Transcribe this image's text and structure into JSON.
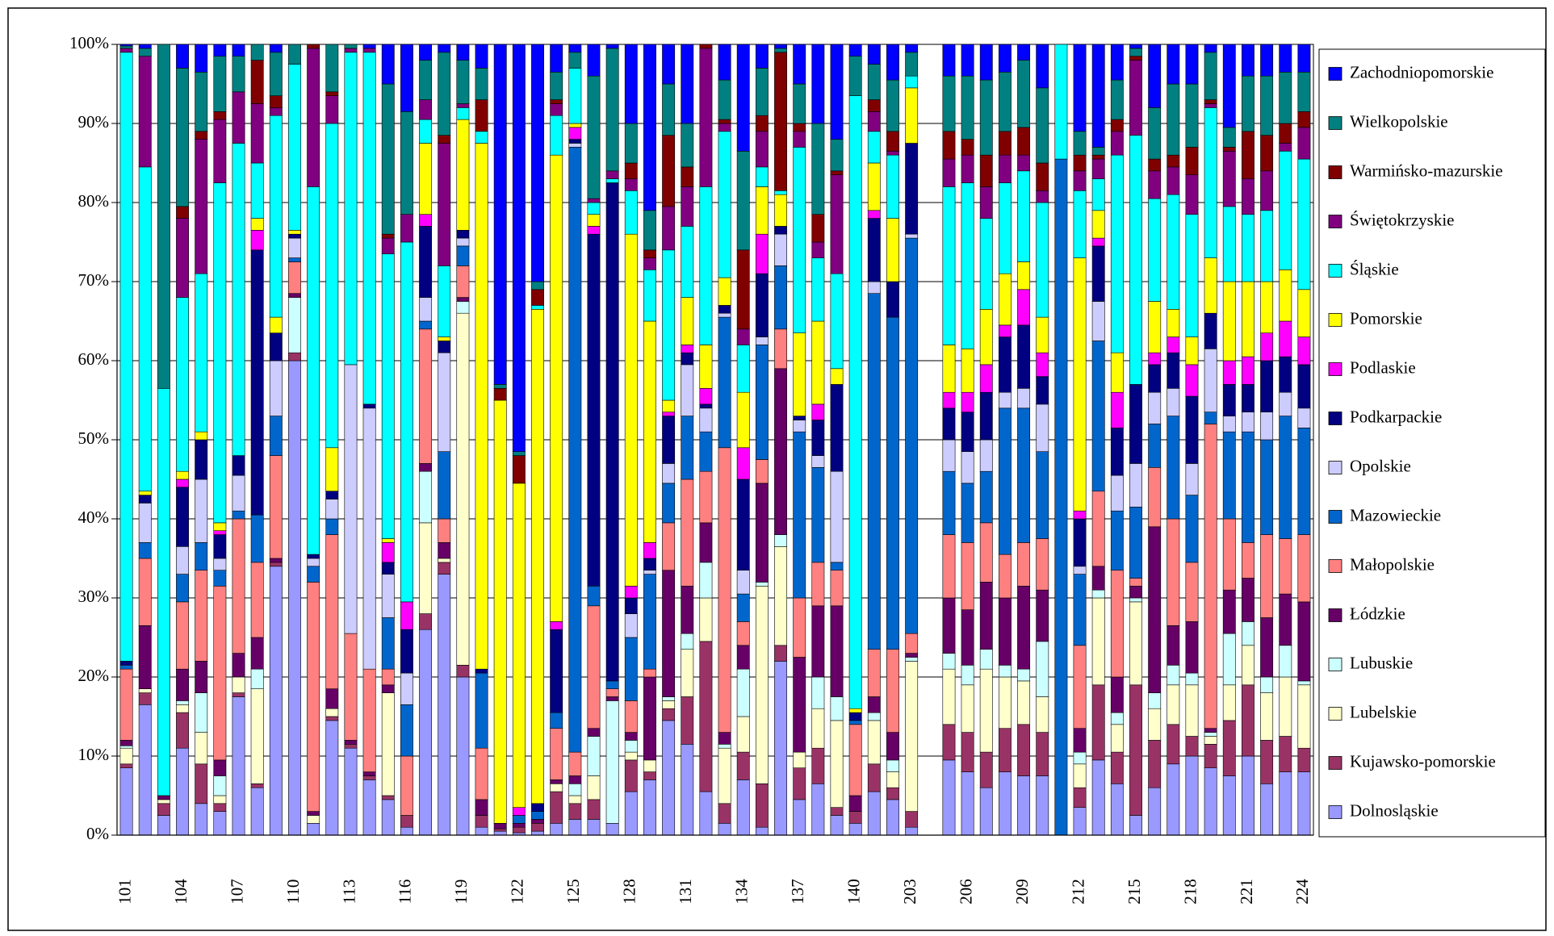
{
  "chart_data": {
    "type": "stacked_bar_100",
    "categories": [
      "101",
      null,
      null,
      "104",
      null,
      null,
      "107",
      null,
      null,
      "110",
      null,
      null,
      "113",
      null,
      null,
      "116",
      null,
      null,
      "119",
      null,
      null,
      "122",
      null,
      null,
      "125",
      null,
      null,
      "128",
      null,
      null,
      "131",
      null,
      null,
      "134",
      null,
      null,
      "137",
      null,
      null,
      "140",
      null,
      null,
      "203",
      null,
      null,
      "206",
      null,
      null,
      "209",
      null,
      null,
      "212",
      null,
      null,
      "215",
      null,
      null,
      "218",
      null,
      null,
      "221",
      null,
      null,
      "224"
    ],
    "ylim": [
      0,
      100
    ],
    "yticks": [
      {
        "value": 0,
        "label": "0%"
      },
      {
        "value": 10,
        "label": "10%"
      },
      {
        "value": 20,
        "label": "20%"
      },
      {
        "value": 30,
        "label": "30%"
      },
      {
        "value": 40,
        "label": "40%"
      },
      {
        "value": 50,
        "label": "50%"
      },
      {
        "value": 60,
        "label": "60%"
      },
      {
        "value": 70,
        "label": "70%"
      },
      {
        "value": 80,
        "label": "80%"
      },
      {
        "value": 90,
        "label": "90%"
      },
      {
        "value": 100,
        "label": "100%"
      }
    ],
    "grid": true,
    "legend": "right",
    "series": [
      {
        "name": "Dolnosląskie",
        "color": "#9999ff",
        "values": [
          8.5,
          16.5,
          2.5,
          11,
          4,
          3,
          17.5,
          6,
          34,
          60,
          1.5,
          14.5,
          11,
          7,
          4.5,
          1,
          26,
          33,
          20,
          1,
          0.5,
          0.3,
          0.5,
          1.5,
          2,
          2,
          1.5,
          5.5,
          7,
          14.5,
          11.5,
          5.5,
          1.5,
          7,
          1,
          22,
          4.5,
          6.5,
          2.5,
          1.5,
          5.5,
          4.5,
          1,
          null,
          9.5,
          8,
          6,
          8,
          7.5,
          7.5,
          0,
          3.5,
          9.5,
          6.5,
          2.5,
          6,
          9,
          10,
          8.5,
          7.5,
          10,
          6.5,
          8,
          8
        ]
      },
      {
        "name": "Kujawsko-pomorskie",
        "color": "#993366",
        "values": [
          0.5,
          1.5,
          1.5,
          4.5,
          5,
          1,
          0.5,
          0.5,
          0.5,
          1,
          0,
          0.5,
          0.5,
          0.5,
          0.5,
          1.5,
          2,
          1.5,
          1.5,
          1.5,
          0.3,
          0.7,
          1,
          4,
          2,
          2.5,
          0,
          4,
          1,
          1.5,
          6,
          19,
          2.5,
          3.5,
          5.5,
          2,
          4,
          4.5,
          1,
          1.5,
          3.5,
          1.5,
          2,
          null,
          4.5,
          5,
          4.5,
          5.5,
          6.5,
          5.5,
          0,
          2.5,
          9.5,
          4,
          16.5,
          6,
          5,
          2.5,
          3,
          7,
          9,
          5.5,
          4.5,
          3
        ]
      },
      {
        "name": "Lubelskie",
        "color": "#ffffcc",
        "values": [
          2,
          0.5,
          0.5,
          1,
          4,
          1,
          2,
          12,
          0,
          0,
          1,
          1,
          0,
          0,
          13,
          0,
          11.5,
          0.5,
          44.5,
          0,
          0,
          0,
          0,
          1,
          1,
          3,
          0,
          1,
          1.5,
          1,
          6,
          5.5,
          7,
          4.5,
          25,
          12.5,
          2,
          5,
          11,
          0,
          5.5,
          2,
          19,
          null,
          7,
          6,
          10.5,
          6.5,
          5.5,
          4.5,
          0,
          3,
          11,
          3.5,
          10.5,
          4,
          5,
          6.5,
          1,
          4.5,
          5,
          6,
          7.5,
          8
        ]
      },
      {
        "name": "Lubuskie",
        "color": "#ccffff",
        "values": [
          0.3,
          0,
          0,
          0.5,
          5,
          2.5,
          0,
          2.5,
          0,
          7,
          0,
          0,
          0,
          0,
          0,
          0,
          6.5,
          0,
          1.5,
          0,
          0,
          0,
          0,
          0,
          1.5,
          5,
          15.5,
          1.5,
          0,
          0.5,
          2,
          4.5,
          0.5,
          6,
          0.5,
          1.5,
          0,
          4,
          3,
          0,
          1,
          1.5,
          0.5,
          null,
          2,
          2.5,
          2.5,
          1.5,
          1.5,
          7,
          0,
          1.5,
          1,
          1.5,
          0.5,
          2,
          2.5,
          1.5,
          0.5,
          6.5,
          3,
          2,
          4,
          0.5
        ]
      },
      {
        "name": "Łódzkie",
        "color": "#660066",
        "values": [
          0.7,
          8,
          0.5,
          4,
          4,
          2,
          3,
          4,
          0.5,
          0.5,
          0.5,
          2.5,
          0.5,
          0.5,
          1,
          0,
          1,
          2,
          0.5,
          2,
          0.7,
          0.5,
          0.5,
          0.5,
          1,
          1,
          0.5,
          1,
          10.5,
          16,
          6,
          5,
          1.5,
          3,
          12.5,
          21,
          12,
          9,
          11.5,
          2,
          2,
          3.5,
          0.5,
          null,
          7,
          7,
          8.5,
          8.5,
          10.5,
          6.5,
          0,
          3,
          3,
          4.5,
          1.5,
          21,
          5,
          6.5,
          0.5,
          5.5,
          5.5,
          7.5,
          6.5,
          10
        ]
      },
      {
        "name": "Małopolskie",
        "color": "#ff8080",
        "values": [
          9,
          8.5,
          0,
          8.5,
          11.5,
          22,
          17,
          9.5,
          13,
          4,
          29,
          19.5,
          13.5,
          13,
          2,
          7.5,
          17,
          3,
          4,
          6.5,
          0,
          0,
          0,
          6.5,
          3,
          15.5,
          1,
          4,
          1,
          6,
          13.5,
          6.5,
          36,
          3,
          3,
          5,
          7.5,
          5.5,
          4.5,
          9,
          6,
          10.5,
          2.5,
          null,
          8,
          8.5,
          7.5,
          5.5,
          5.5,
          6.5,
          0,
          10.5,
          9.5,
          13.5,
          1,
          7.5,
          13.5,
          7.5,
          38.5,
          9,
          4.5,
          10.5,
          7,
          8.5
        ]
      },
      {
        "name": "Mazowieckie",
        "color": "#0066cc",
        "values": [
          0.5,
          2,
          0,
          3.5,
          3.5,
          2,
          1,
          6,
          5,
          0.5,
          2,
          2,
          0,
          0,
          6.5,
          6.5,
          1,
          8.5,
          2.5,
          9.5,
          0,
          1,
          1,
          2,
          76.5,
          2.5,
          1,
          8,
          12,
          5,
          8,
          5,
          16.5,
          3.5,
          14.5,
          8,
          21,
          12,
          1,
          0.5,
          45,
          42,
          50,
          null,
          8,
          7.5,
          6.5,
          18.5,
          17,
          11,
          85.5,
          9,
          19,
          7.5,
          9,
          5.5,
          13,
          8.5,
          1.5,
          11,
          14,
          12,
          15.5,
          13.5
        ]
      },
      {
        "name": "Opolskie",
        "color": "#ccccff",
        "values": [
          0,
          5,
          0,
          3.5,
          8,
          1.5,
          4.5,
          0,
          7,
          2.5,
          1,
          2.5,
          34,
          33,
          5.5,
          4,
          3,
          12.5,
          1,
          0,
          0,
          0,
          0,
          0,
          0.5,
          0,
          0,
          3,
          0.5,
          2.5,
          6.5,
          3,
          0.5,
          3,
          1,
          4,
          1.5,
          1.5,
          11.5,
          0,
          1.5,
          0,
          0.5,
          null,
          4,
          4,
          4,
          2,
          2.5,
          6,
          0,
          1,
          5,
          4.5,
          5.5,
          4,
          3.5,
          4,
          8,
          2,
          2.5,
          3.5,
          3,
          2.5
        ]
      },
      {
        "name": "Podkarpackie",
        "color": "#000080",
        "values": [
          0.5,
          1,
          0,
          7.5,
          5,
          3,
          2.5,
          33.5,
          3.5,
          0.5,
          0.5,
          1,
          0,
          0.5,
          1.5,
          5.5,
          9,
          1.5,
          1,
          0.5,
          0,
          0,
          1,
          10.5,
          0.5,
          44.5,
          63,
          2,
          1.5,
          6,
          1.5,
          0.5,
          1,
          11.5,
          8,
          1,
          0.5,
          4.5,
          11,
          1,
          8,
          4.5,
          11.5,
          null,
          4,
          5,
          6,
          7,
          8,
          3.5,
          0,
          6,
          7,
          6,
          10,
          3.5,
          4.5,
          8.5,
          4.5,
          4,
          3.5,
          6.5,
          4.5,
          5.5
        ]
      },
      {
        "name": "Podlaskie",
        "color": "#ff00ff",
        "values": [
          0,
          0,
          0,
          1,
          0,
          0.5,
          0,
          2.5,
          0,
          0,
          0,
          0,
          0,
          0,
          2.5,
          3.5,
          1.5,
          0,
          0,
          0,
          0,
          1,
          0,
          1,
          1.5,
          1,
          0,
          1.5,
          2,
          0.5,
          1,
          2,
          0,
          4,
          5,
          0,
          0,
          2,
          0,
          0,
          1,
          0,
          0,
          null,
          2,
          2.5,
          3.5,
          1.5,
          4.5,
          3,
          0,
          1,
          1,
          4.5,
          0,
          1.5,
          2,
          4,
          0,
          3,
          3.5,
          3.5,
          4.5,
          3.5
        ]
      },
      {
        "name": "Pomorskie",
        "color": "#ffff00",
        "values": [
          0,
          0.5,
          0,
          1,
          1,
          1,
          0,
          1.5,
          2,
          0.5,
          0,
          5.5,
          0,
          0,
          0.5,
          0,
          9,
          0.5,
          14,
          66.5,
          53.5,
          41,
          62.5,
          59,
          0.5,
          1.5,
          0,
          44.5,
          28,
          1.5,
          6,
          5.5,
          3.5,
          7,
          6,
          4,
          10.5,
          10.5,
          2,
          0.5,
          6,
          8,
          7,
          null,
          6,
          5.5,
          7,
          6.5,
          3.5,
          4.5,
          0,
          32,
          3.5,
          5,
          0,
          6.5,
          3.5,
          3.5,
          7,
          10,
          9.5,
          6.5,
          6.5,
          6
        ]
      },
      {
        "name": "Śląskie",
        "color": "#00ffff",
        "values": [
          77,
          41,
          51.5,
          22,
          20,
          43,
          39.5,
          7,
          25.5,
          21,
          46.5,
          41,
          39.5,
          44.5,
          36,
          45.5,
          3,
          9,
          1.5,
          1.5,
          0,
          0,
          0.5,
          5,
          7,
          1.5,
          0.5,
          5.5,
          6.5,
          19,
          9,
          20,
          18.5,
          6,
          2.5,
          0.5,
          23.5,
          8,
          12,
          77.5,
          4,
          8,
          1.5,
          null,
          20,
          21,
          11.5,
          11.5,
          11.5,
          14.5,
          14.5,
          8.5,
          4,
          25,
          31.5,
          13,
          14.5,
          15.5,
          19,
          9.5,
          8.5,
          9,
          15,
          16.5
        ]
      },
      {
        "name": "Świętokrzyskie",
        "color": "#800080",
        "values": [
          0.5,
          14,
          0,
          10,
          17,
          8,
          6.5,
          7.5,
          1,
          0,
          17.5,
          3.5,
          0.5,
          0.5,
          2,
          3.5,
          2.5,
          15.5,
          0.5,
          0,
          0,
          0,
          0,
          1.5,
          0,
          0.5,
          1,
          1.5,
          1.5,
          5.5,
          5,
          17.5,
          1,
          2,
          4.5,
          0,
          2,
          2,
          12.5,
          0,
          2.5,
          0.5,
          0,
          null,
          3.5,
          3.5,
          4,
          3.5,
          2,
          1.5,
          0,
          2.5,
          2.5,
          3,
          9.5,
          3.5,
          3.5,
          5,
          0.5,
          7,
          4.5,
          5,
          1,
          4
        ]
      },
      {
        "name": "Warmińsko-mazurskie",
        "color": "#800000",
        "values": [
          0,
          0,
          0,
          1.5,
          1,
          1,
          0,
          5.5,
          1.5,
          0,
          0.5,
          0.5,
          0,
          0,
          0.5,
          0,
          0,
          1,
          0,
          4,
          1.5,
          3.5,
          2,
          0.5,
          0,
          0,
          0,
          2,
          1,
          9,
          2.5,
          0.5,
          0.5,
          10,
          2,
          17.5,
          1,
          3.5,
          0.5,
          0,
          1.5,
          2.5,
          0,
          null,
          3.5,
          2,
          4,
          3,
          3.5,
          3.5,
          0,
          2,
          0.5,
          1.5,
          0.5,
          1.5,
          1.5,
          3.5,
          0.5,
          0.5,
          6,
          4.5,
          2.5,
          2
        ]
      },
      {
        "name": "Wielkopolskie",
        "color": "#008080",
        "values": [
          0.3,
          1,
          43.5,
          17.5,
          7.5,
          7,
          4.5,
          2,
          5.5,
          2.5,
          0,
          6,
          0.5,
          0,
          19,
          13,
          5,
          10.5,
          5.5,
          4,
          0.5,
          0.5,
          1,
          3.5,
          2,
          15.5,
          15.5,
          5,
          5,
          6.5,
          5.5,
          0,
          5,
          12.5,
          6,
          0.5,
          5,
          11.5,
          4,
          5,
          4.5,
          6.5,
          3,
          null,
          7,
          8,
          9.5,
          7.5,
          8.5,
          9.5,
          0,
          3,
          1,
          5,
          1,
          6.5,
          9,
          8,
          6,
          2.5,
          7,
          7.5,
          6.5,
          5
        ]
      },
      {
        "name": "Zachodniopomorskie",
        "color": "#0000ff",
        "values": [
          0.2,
          0.5,
          0,
          3,
          3.5,
          1.5,
          1.5,
          0,
          1,
          0,
          0,
          0,
          0,
          0.5,
          5,
          8.5,
          2,
          1,
          2,
          3,
          43,
          51.5,
          30,
          3.5,
          1,
          4,
          0.5,
          10,
          21,
          5,
          10,
          0,
          4.5,
          13.5,
          3,
          0.5,
          5,
          10,
          12,
          1.5,
          2.5,
          4.5,
          1,
          null,
          4,
          4,
          4.5,
          3.5,
          2,
          5.5,
          0,
          11,
          13,
          4.5,
          0.5,
          8,
          5,
          5,
          1,
          10.5,
          4,
          4,
          3.5,
          3.5
        ]
      }
    ]
  }
}
